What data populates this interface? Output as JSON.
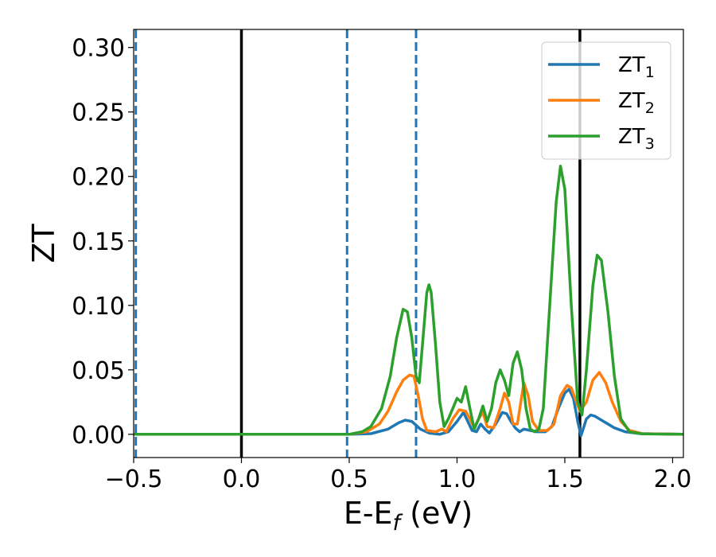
{
  "chart_data": {
    "type": "line",
    "xlabel": {
      "main": "E-E",
      "sub": "f",
      "unit": " (eV)"
    },
    "ylabel": "ZT",
    "xlim": [
      -0.5,
      2.05
    ],
    "ylim": [
      -0.018,
      0.314
    ],
    "x_ticks": [
      -0.5,
      0.0,
      0.5,
      1.0,
      1.5,
      2.0
    ],
    "x_tick_labels": [
      "−0.5",
      "0.0",
      "0.5",
      "1.0",
      "1.5",
      "2.0"
    ],
    "y_ticks": [
      0.0,
      0.05,
      0.1,
      0.15,
      0.2,
      0.25,
      0.3
    ],
    "y_tick_labels": [
      "0.00",
      "0.05",
      "0.10",
      "0.15",
      "0.20",
      "0.25",
      "0.30"
    ],
    "grid": false,
    "legend": {
      "position": "top-right"
    },
    "vertical_lines": [
      {
        "x": -0.49,
        "style": "dashed",
        "color": "#1f77b4"
      },
      {
        "x": 0.0,
        "style": "solid",
        "color": "#000000"
      },
      {
        "x": 0.49,
        "style": "dashed",
        "color": "#1f77b4"
      },
      {
        "x": 0.81,
        "style": "dashed",
        "color": "#1f77b4"
      },
      {
        "x": 1.57,
        "style": "solid",
        "color": "#000000"
      }
    ],
    "series": [
      {
        "name": "ZT",
        "sub": "1",
        "color": "#1f77b4",
        "points": [
          [
            -0.5,
            0
          ],
          [
            0.5,
            0
          ],
          [
            0.6,
            0.0005
          ],
          [
            0.68,
            0.004
          ],
          [
            0.73,
            0.009
          ],
          [
            0.76,
            0.011
          ],
          [
            0.79,
            0.01
          ],
          [
            0.83,
            0.004
          ],
          [
            0.87,
            0.001
          ],
          [
            0.92,
            0
          ],
          [
            0.96,
            0.002
          ],
          [
            1.0,
            0.01
          ],
          [
            1.03,
            0.017
          ],
          [
            1.05,
            0.01
          ],
          [
            1.07,
            0.003
          ],
          [
            1.09,
            0.002
          ],
          [
            1.11,
            0.008
          ],
          [
            1.13,
            0.004
          ],
          [
            1.15,
            0.001
          ],
          [
            1.18,
            0.008
          ],
          [
            1.21,
            0.017
          ],
          [
            1.23,
            0.016
          ],
          [
            1.25,
            0.01
          ],
          [
            1.27,
            0.005
          ],
          [
            1.29,
            0.002
          ],
          [
            1.31,
            0.004
          ],
          [
            1.34,
            0.003
          ],
          [
            1.37,
            0.002
          ],
          [
            1.41,
            0.002
          ],
          [
            1.44,
            0.006
          ],
          [
            1.47,
            0.02
          ],
          [
            1.5,
            0.032
          ],
          [
            1.52,
            0.035
          ],
          [
            1.54,
            0.028
          ],
          [
            1.56,
            0.01
          ],
          [
            1.575,
            -0.001
          ],
          [
            1.585,
            0.004
          ],
          [
            1.6,
            0.012
          ],
          [
            1.62,
            0.015
          ],
          [
            1.64,
            0.014
          ],
          [
            1.68,
            0.01
          ],
          [
            1.73,
            0.005
          ],
          [
            1.78,
            0.002
          ],
          [
            1.85,
            0.0005
          ],
          [
            2.05,
            0
          ]
        ]
      },
      {
        "name": "ZT",
        "sub": "2",
        "color": "#ff7f0e",
        "points": [
          [
            -0.5,
            0
          ],
          [
            0.5,
            0
          ],
          [
            0.58,
            0.002
          ],
          [
            0.64,
            0.008
          ],
          [
            0.68,
            0.018
          ],
          [
            0.72,
            0.033
          ],
          [
            0.75,
            0.042
          ],
          [
            0.78,
            0.046
          ],
          [
            0.8,
            0.045
          ],
          [
            0.82,
            0.03
          ],
          [
            0.84,
            0.012
          ],
          [
            0.86,
            0.003
          ],
          [
            0.9,
            0.002
          ],
          [
            0.93,
            0.004
          ],
          [
            0.95,
            0.002
          ],
          [
            0.98,
            0.012
          ],
          [
            1.01,
            0.019
          ],
          [
            1.04,
            0.018
          ],
          [
            1.06,
            0.012
          ],
          [
            1.08,
            0.005
          ],
          [
            1.1,
            0.012
          ],
          [
            1.12,
            0.017
          ],
          [
            1.14,
            0.006
          ],
          [
            1.17,
            0.005
          ],
          [
            1.2,
            0.02
          ],
          [
            1.22,
            0.032
          ],
          [
            1.24,
            0.025
          ],
          [
            1.26,
            0.008
          ],
          [
            1.28,
            0.008
          ],
          [
            1.31,
            0.04
          ],
          [
            1.33,
            0.03
          ],
          [
            1.35,
            0.01
          ],
          [
            1.38,
            0.003
          ],
          [
            1.42,
            0.003
          ],
          [
            1.45,
            0.008
          ],
          [
            1.48,
            0.03
          ],
          [
            1.51,
            0.038
          ],
          [
            1.53,
            0.036
          ],
          [
            1.55,
            0.027
          ],
          [
            1.57,
            0.018
          ],
          [
            1.6,
            0.025
          ],
          [
            1.63,
            0.042
          ],
          [
            1.66,
            0.048
          ],
          [
            1.69,
            0.04
          ],
          [
            1.72,
            0.025
          ],
          [
            1.76,
            0.01
          ],
          [
            1.8,
            0.003
          ],
          [
            1.86,
            0.0005
          ],
          [
            2.05,
            0
          ]
        ]
      },
      {
        "name": "ZT",
        "sub": "3",
        "color": "#2ca02c",
        "points": [
          [
            -0.5,
            0
          ],
          [
            0.5,
            0
          ],
          [
            0.56,
            0.002
          ],
          [
            0.6,
            0.006
          ],
          [
            0.65,
            0.02
          ],
          [
            0.69,
            0.045
          ],
          [
            0.72,
            0.075
          ],
          [
            0.75,
            0.097
          ],
          [
            0.77,
            0.095
          ],
          [
            0.79,
            0.075
          ],
          [
            0.81,
            0.045
          ],
          [
            0.825,
            0.04
          ],
          [
            0.84,
            0.07
          ],
          [
            0.86,
            0.11
          ],
          [
            0.87,
            0.116
          ],
          [
            0.88,
            0.11
          ],
          [
            0.9,
            0.07
          ],
          [
            0.92,
            0.025
          ],
          [
            0.94,
            0.006
          ],
          [
            0.96,
            0.012
          ],
          [
            0.98,
            0.02
          ],
          [
            1.0,
            0.028
          ],
          [
            1.02,
            0.025
          ],
          [
            1.04,
            0.037
          ],
          [
            1.06,
            0.02
          ],
          [
            1.08,
            0.004
          ],
          [
            1.1,
            0.012
          ],
          [
            1.12,
            0.022
          ],
          [
            1.14,
            0.01
          ],
          [
            1.16,
            0.02
          ],
          [
            1.18,
            0.04
          ],
          [
            1.2,
            0.05
          ],
          [
            1.22,
            0.042
          ],
          [
            1.24,
            0.03
          ],
          [
            1.26,
            0.055
          ],
          [
            1.28,
            0.064
          ],
          [
            1.3,
            0.05
          ],
          [
            1.32,
            0.02
          ],
          [
            1.34,
            0.004
          ],
          [
            1.36,
            0.002
          ],
          [
            1.38,
            0.004
          ],
          [
            1.4,
            0.02
          ],
          [
            1.43,
            0.1
          ],
          [
            1.46,
            0.18
          ],
          [
            1.48,
            0.208
          ],
          [
            1.5,
            0.19
          ],
          [
            1.53,
            0.1
          ],
          [
            1.56,
            0.025
          ],
          [
            1.58,
            0.015
          ],
          [
            1.6,
            0.05
          ],
          [
            1.63,
            0.115
          ],
          [
            1.65,
            0.139
          ],
          [
            1.67,
            0.135
          ],
          [
            1.7,
            0.095
          ],
          [
            1.73,
            0.045
          ],
          [
            1.76,
            0.012
          ],
          [
            1.8,
            0.002
          ],
          [
            1.86,
            0.0003
          ],
          [
            2.05,
            0
          ]
        ]
      }
    ]
  }
}
